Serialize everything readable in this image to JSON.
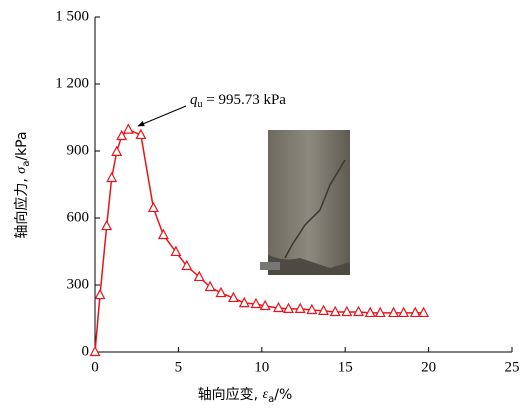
{
  "chart_data": {
    "type": "line",
    "x_label": {
      "text": "轴向应变, ",
      "symbol": "ε",
      "subscript": "a",
      "unit": "/%"
    },
    "y_label": {
      "text": "轴向应力, ",
      "symbol": "σ",
      "subscript": "a",
      "unit": "/kPa"
    },
    "annotation": {
      "symbol": "q",
      "subscript": "u",
      "text": " = 995.73 kPa"
    },
    "x": [
      0,
      0.3,
      0.7,
      1.0,
      1.3,
      1.6,
      2.0,
      2.75,
      3.5,
      4.1,
      4.85,
      5.5,
      6.25,
      6.9,
      7.55,
      8.3,
      8.95,
      9.65,
      10.2,
      11.0,
      11.6,
      12.3,
      13.0,
      13.7,
      14.4,
      15.1,
      15.8,
      16.5,
      17.1,
      17.9,
      18.5,
      19.2,
      19.7
    ],
    "series": [
      {
        "color": "#e8141a",
        "values": [
          0,
          255,
          564,
          779,
          896,
          967,
          995.73,
          972,
          645,
          524,
          448,
          385,
          336,
          291,
          264,
          242,
          219,
          215,
          206,
          197,
          193,
          193,
          188,
          184,
          179,
          179,
          179,
          175,
          175,
          175,
          175,
          175,
          175
        ]
      }
    ],
    "xlim": [
      0,
      25
    ],
    "xticks": [
      0,
      5,
      10,
      15,
      20,
      25
    ],
    "ylim": [
      0,
      1500
    ],
    "yticks": [
      0,
      300,
      600,
      900,
      {
        "value": 1200,
        "label": "1 200"
      },
      {
        "value": 1500,
        "label": "1 500"
      }
    ]
  }
}
